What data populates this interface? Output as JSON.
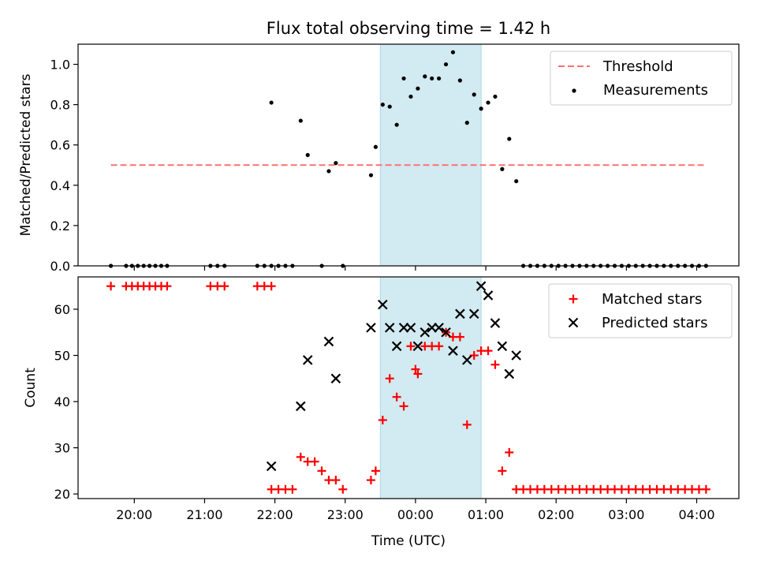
{
  "chart_data": [
    {
      "type": "scatter",
      "title": "Flux total observing time = 1.42 h",
      "xlabel": "",
      "ylabel": "Matched/Predicted stars",
      "xlim": [
        "19:12",
        "04:36"
      ],
      "ylim": [
        0,
        1.1
      ],
      "yticks": [
        "0.0",
        "0.2",
        "0.4",
        "0.6",
        "0.8",
        "1.0"
      ],
      "highlight_span": {
        "start": "23:30",
        "end": "00:56",
        "color": "#add8e6"
      },
      "legend": {
        "position": "top-right"
      },
      "threshold": {
        "name": "Threshold",
        "y": 0.5,
        "x_start": "19:40",
        "x_end": "04:06",
        "color": "#ff7070",
        "style": "dashed"
      },
      "measurements": {
        "name": "Measurements",
        "color": "#000000",
        "x": [
          "19:40",
          "19:53",
          "19:58",
          "20:03",
          "20:08",
          "20:13",
          "20:18",
          "20:23",
          "20:28",
          "21:05",
          "21:11",
          "21:17",
          "21:45",
          "21:51",
          "21:57",
          "21:57",
          "22:03",
          "22:09",
          "22:15",
          "22:22",
          "22:28",
          "22:40",
          "22:46",
          "22:52",
          "22:58",
          "23:22",
          "23:26",
          "23:32",
          "23:38",
          "23:44",
          "23:50",
          "23:56",
          "00:02",
          "00:08",
          "00:14",
          "00:20",
          "00:26",
          "00:32",
          "00:38",
          "00:44",
          "00:50",
          "00:56",
          "01:02",
          "01:08",
          "01:14",
          "01:20",
          "01:26",
          "01:32",
          "01:38",
          "01:44",
          "01:50",
          "01:56",
          "02:02",
          "02:08",
          "02:14",
          "02:20",
          "02:26",
          "02:32",
          "02:38",
          "02:44",
          "02:50",
          "02:56",
          "03:02",
          "03:08",
          "03:14",
          "03:20",
          "03:26",
          "03:32",
          "03:38",
          "03:44",
          "03:50",
          "03:56",
          "04:02",
          "04:08"
        ],
        "y": [
          0,
          0,
          0,
          0,
          0,
          0,
          0,
          0,
          0,
          0,
          0,
          0,
          0,
          0,
          0.81,
          0,
          0,
          0,
          0,
          0.72,
          0.55,
          0,
          0.47,
          0.51,
          0,
          0.45,
          0.59,
          0.8,
          0.79,
          0.7,
          0.93,
          0.84,
          0.88,
          0.94,
          0.93,
          0.93,
          1.0,
          1.06,
          0.92,
          0.71,
          0.85,
          0.78,
          0.81,
          0.84,
          0.48,
          0.63,
          0.42,
          0,
          0,
          0,
          0,
          0,
          0,
          0,
          0,
          0,
          0,
          0,
          0,
          0,
          0,
          0,
          0,
          0,
          0,
          0,
          0,
          0,
          0,
          0,
          0,
          0,
          0,
          0
        ]
      }
    },
    {
      "type": "scatter",
      "title": "",
      "xlabel": "Time (UTC)",
      "ylabel": "Count",
      "xlim": [
        "19:12",
        "04:36"
      ],
      "ylim": [
        19,
        67
      ],
      "yticks": [
        "20",
        "30",
        "40",
        "50",
        "60"
      ],
      "xticks": [
        "20:00",
        "21:00",
        "22:00",
        "23:00",
        "00:00",
        "01:00",
        "02:00",
        "03:00",
        "04:00"
      ],
      "highlight_span": {
        "start": "23:30",
        "end": "00:56",
        "color": "#add8e6"
      },
      "legend": {
        "position": "top-right"
      },
      "matched": {
        "name": "Matched stars",
        "color": "#ff0000",
        "x": [
          "19:40",
          "19:53",
          "19:58",
          "20:03",
          "20:08",
          "20:13",
          "20:18",
          "20:23",
          "20:28",
          "21:05",
          "21:11",
          "21:17",
          "21:45",
          "21:51",
          "21:57",
          "21:57",
          "22:03",
          "22:09",
          "22:15",
          "22:22",
          "22:28",
          "22:34",
          "22:40",
          "22:46",
          "22:52",
          "22:58",
          "23:22",
          "23:26",
          "23:32",
          "23:38",
          "23:44",
          "23:50",
          "23:56",
          "00:00",
          "00:02",
          "00:08",
          "00:14",
          "00:20",
          "00:26",
          "00:32",
          "00:38",
          "00:44",
          "00:50",
          "00:56",
          "01:02",
          "01:08",
          "01:14",
          "01:20",
          "01:26",
          "01:32",
          "01:38",
          "01:44",
          "01:50",
          "01:56",
          "02:02",
          "02:08",
          "02:14",
          "02:20",
          "02:26",
          "02:32",
          "02:38",
          "02:44",
          "02:50",
          "02:56",
          "03:02",
          "03:08",
          "03:14",
          "03:20",
          "03:26",
          "03:32",
          "03:38",
          "03:44",
          "03:50",
          "03:56",
          "04:02",
          "04:08"
        ],
        "y": [
          65,
          65,
          65,
          65,
          65,
          65,
          65,
          65,
          65,
          65,
          65,
          65,
          65,
          65,
          65,
          21,
          21,
          21,
          21,
          28,
          27,
          27,
          25,
          23,
          23,
          21,
          23,
          25,
          36,
          45,
          41,
          39,
          52,
          47,
          46,
          52,
          52,
          52,
          55,
          54,
          54,
          35,
          50,
          51,
          51,
          48,
          25,
          29,
          21,
          21,
          21,
          21,
          21,
          21,
          21,
          21,
          21,
          21,
          21,
          21,
          21,
          21,
          21,
          21,
          21,
          21,
          21,
          21,
          21,
          21,
          21,
          21,
          21,
          21,
          21,
          21
        ]
      },
      "predicted": {
        "name": "Predicted stars",
        "color": "#000000",
        "x": [
          "21:57",
          "22:22",
          "22:28",
          "22:46",
          "22:52",
          "23:22",
          "23:32",
          "23:38",
          "23:44",
          "23:50",
          "23:56",
          "00:02",
          "00:08",
          "00:14",
          "00:20",
          "00:26",
          "00:32",
          "00:38",
          "00:44",
          "00:50",
          "00:56",
          "01:02",
          "01:08",
          "01:14",
          "01:20",
          "01:26"
        ],
        "y": [
          26,
          39,
          49,
          53,
          45,
          56,
          61,
          56,
          52,
          56,
          56,
          52,
          55,
          56,
          56,
          55,
          51,
          59,
          49,
          59,
          65,
          63,
          57,
          52,
          46,
          50
        ]
      }
    }
  ]
}
